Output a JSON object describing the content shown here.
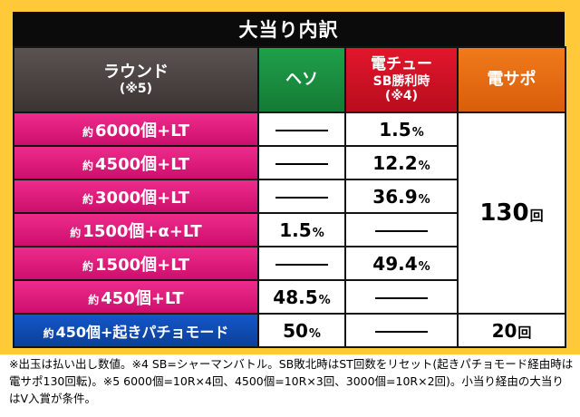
{
  "title": "大当り内訳",
  "headers": {
    "round": "ラウンド",
    "round_sub": "(※5)",
    "heso": "ヘソ",
    "chu": "電チュー",
    "chu_sub1": "SB勝利時",
    "chu_sub2": "(※4)",
    "sapo": "電サポ"
  },
  "rows": [
    {
      "prefix": "約",
      "label": "6000個+LT",
      "heso": "",
      "chu": "1.5",
      "chu_unit": "%"
    },
    {
      "prefix": "約",
      "label": "4500個+LT",
      "heso": "",
      "chu": "12.2",
      "chu_unit": "%"
    },
    {
      "prefix": "約",
      "label": "3000個+LT",
      "heso": "",
      "chu": "36.9",
      "chu_unit": "%"
    },
    {
      "prefix": "約",
      "label": "1500個+α+LT",
      "heso": "1.5",
      "heso_unit": "%",
      "chu": ""
    },
    {
      "prefix": "約",
      "label": "1500個+LT",
      "heso": "",
      "chu": "49.4",
      "chu_unit": "%"
    },
    {
      "prefix": "約",
      "label": "450個+LT",
      "heso": "48.5",
      "heso_unit": "%",
      "chu": ""
    },
    {
      "prefix": "約",
      "label": "450個+起きパチョモード",
      "heso": "50",
      "heso_unit": "%",
      "chu": ""
    }
  ],
  "sapo_main": {
    "value": "130",
    "unit": "回"
  },
  "sapo_last": {
    "value": "20",
    "unit": "回"
  },
  "notes": "※出玉は払い出し数値。※4 SB=シャーマンバトル。SB敗北時はST回数をリセット(起きパチョモード経由時は電サポ130回転)。※5 6000個=10R×4回、4500個=10R×3回、3000個=10R×2回)。小当り経由の大当りはV入賞が条件。"
}
